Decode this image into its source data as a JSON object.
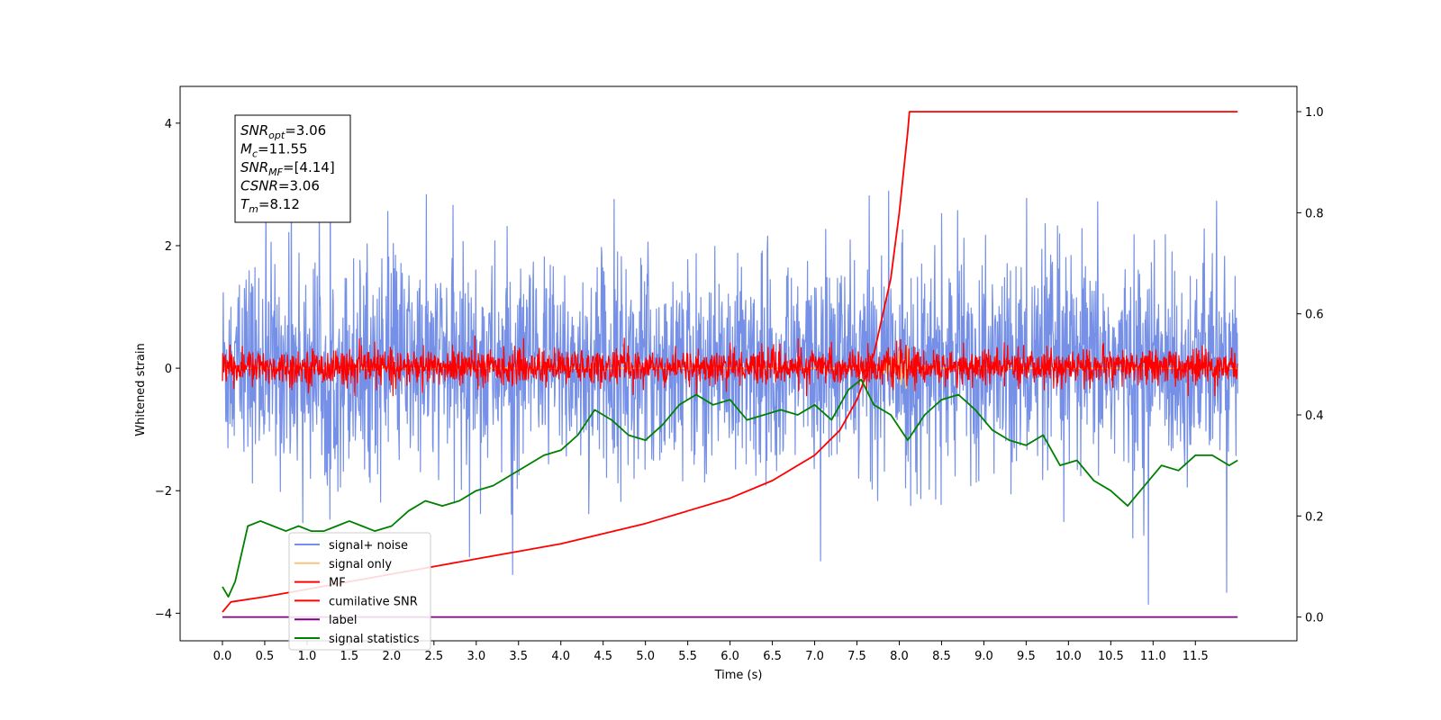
{
  "chart_data": {
    "type": "line",
    "xlabel": "Time (s)",
    "ylabel_left": "Whitened strain",
    "ylabel_right": "",
    "xlim": [
      -0.5,
      12.7
    ],
    "ylim_left": [
      -4.45,
      4.6
    ],
    "ylim_right": [
      -0.047,
      1.05
    ],
    "x_ticks": [
      "0.0",
      "0.5",
      "1.0",
      "1.5",
      "2.0",
      "2.5",
      "3.0",
      "3.5",
      "4.0",
      "4.5",
      "5.0",
      "5.5",
      "6.0",
      "6.5",
      "7.0",
      "7.5",
      "8.0",
      "8.5",
      "9.0",
      "9.5",
      "10.0",
      "10.5",
      "11.0",
      "11.5"
    ],
    "y_ticks_left": [
      "4",
      "2",
      "0",
      "−2",
      "−4"
    ],
    "y_ticks_right": [
      "1.0",
      "0.8",
      "0.6",
      "0.4",
      "0.2",
      "0.0"
    ],
    "grid": false,
    "legend_position": "lower-left",
    "annotation": [
      {
        "base": "SNR",
        "sub": "opt",
        "rest": "=3.06"
      },
      {
        "base": "M",
        "sub": "c",
        "rest": "=11.55"
      },
      {
        "base": "SNR",
        "sub": "MF",
        "rest": "=[4.14]"
      },
      {
        "base": "CSNR",
        "sub": "",
        "rest": "=3.06"
      },
      {
        "base": "T",
        "sub": "m",
        "rest": "=8.12"
      }
    ],
    "series": [
      {
        "name": "signal+ noise",
        "axis": "left",
        "color": "#7590e6",
        "kind": "noise",
        "x_range": [
          0.0,
          12.0
        ],
        "noise_range_approx": [
          -4.0,
          4.15
        ]
      },
      {
        "name": "signal only",
        "axis": "left",
        "color": "#f5c77e",
        "kind": "chirp",
        "x_range": [
          0.0,
          12.0
        ],
        "peak_time": 8.12,
        "peak_amplitude": 0.4
      },
      {
        "name": "MF",
        "axis": "left",
        "color": "#ff0000",
        "kind": "noise",
        "x_range": [
          0.0,
          12.0
        ],
        "noise_range_approx": [
          -0.45,
          1.0
        ]
      },
      {
        "name": "cumilative SNR",
        "axis": "right",
        "color": "#ff0000",
        "x": [
          0.0,
          0.1,
          0.5,
          1.0,
          1.5,
          2.0,
          2.5,
          3.0,
          3.5,
          4.0,
          4.5,
          5.0,
          5.5,
          6.0,
          6.5,
          7.0,
          7.3,
          7.5,
          7.7,
          7.9,
          8.0,
          8.05,
          8.1,
          8.12,
          12.0
        ],
        "values": [
          0.01,
          0.03,
          0.04,
          0.055,
          0.07,
          0.085,
          0.1,
          0.115,
          0.13,
          0.145,
          0.165,
          0.185,
          0.21,
          0.235,
          0.27,
          0.32,
          0.37,
          0.43,
          0.52,
          0.67,
          0.8,
          0.88,
          0.96,
          1.0,
          1.0
        ]
      },
      {
        "name": "label",
        "axis": "right",
        "color": "#800080",
        "x": [
          0.0,
          12.0
        ],
        "values": [
          0.0,
          0.0
        ]
      },
      {
        "name": "signal statistics",
        "axis": "right",
        "color": "#008000",
        "x": [
          0.0,
          0.07,
          0.15,
          0.3,
          0.45,
          0.6,
          0.75,
          0.9,
          1.05,
          1.2,
          1.35,
          1.5,
          1.65,
          1.8,
          2.0,
          2.2,
          2.4,
          2.6,
          2.8,
          3.0,
          3.2,
          3.4,
          3.6,
          3.8,
          4.0,
          4.2,
          4.4,
          4.6,
          4.8,
          5.0,
          5.2,
          5.4,
          5.6,
          5.8,
          6.0,
          6.2,
          6.4,
          6.6,
          6.8,
          7.0,
          7.2,
          7.4,
          7.55,
          7.7,
          7.9,
          8.1,
          8.3,
          8.5,
          8.7,
          8.9,
          9.1,
          9.3,
          9.5,
          9.7,
          9.9,
          10.1,
          10.3,
          10.5,
          10.7,
          10.9,
          11.1,
          11.3,
          11.5,
          11.7,
          11.9,
          12.0
        ],
        "values": [
          0.06,
          0.04,
          0.07,
          0.18,
          0.19,
          0.18,
          0.17,
          0.18,
          0.17,
          0.17,
          0.18,
          0.19,
          0.18,
          0.17,
          0.18,
          0.21,
          0.23,
          0.22,
          0.23,
          0.25,
          0.26,
          0.28,
          0.3,
          0.32,
          0.33,
          0.36,
          0.41,
          0.39,
          0.36,
          0.35,
          0.38,
          0.42,
          0.44,
          0.42,
          0.43,
          0.39,
          0.4,
          0.41,
          0.4,
          0.42,
          0.39,
          0.45,
          0.47,
          0.42,
          0.4,
          0.35,
          0.4,
          0.43,
          0.44,
          0.41,
          0.37,
          0.35,
          0.34,
          0.36,
          0.3,
          0.31,
          0.27,
          0.25,
          0.22,
          0.26,
          0.3,
          0.29,
          0.32,
          0.32,
          0.3,
          0.31
        ]
      }
    ]
  }
}
